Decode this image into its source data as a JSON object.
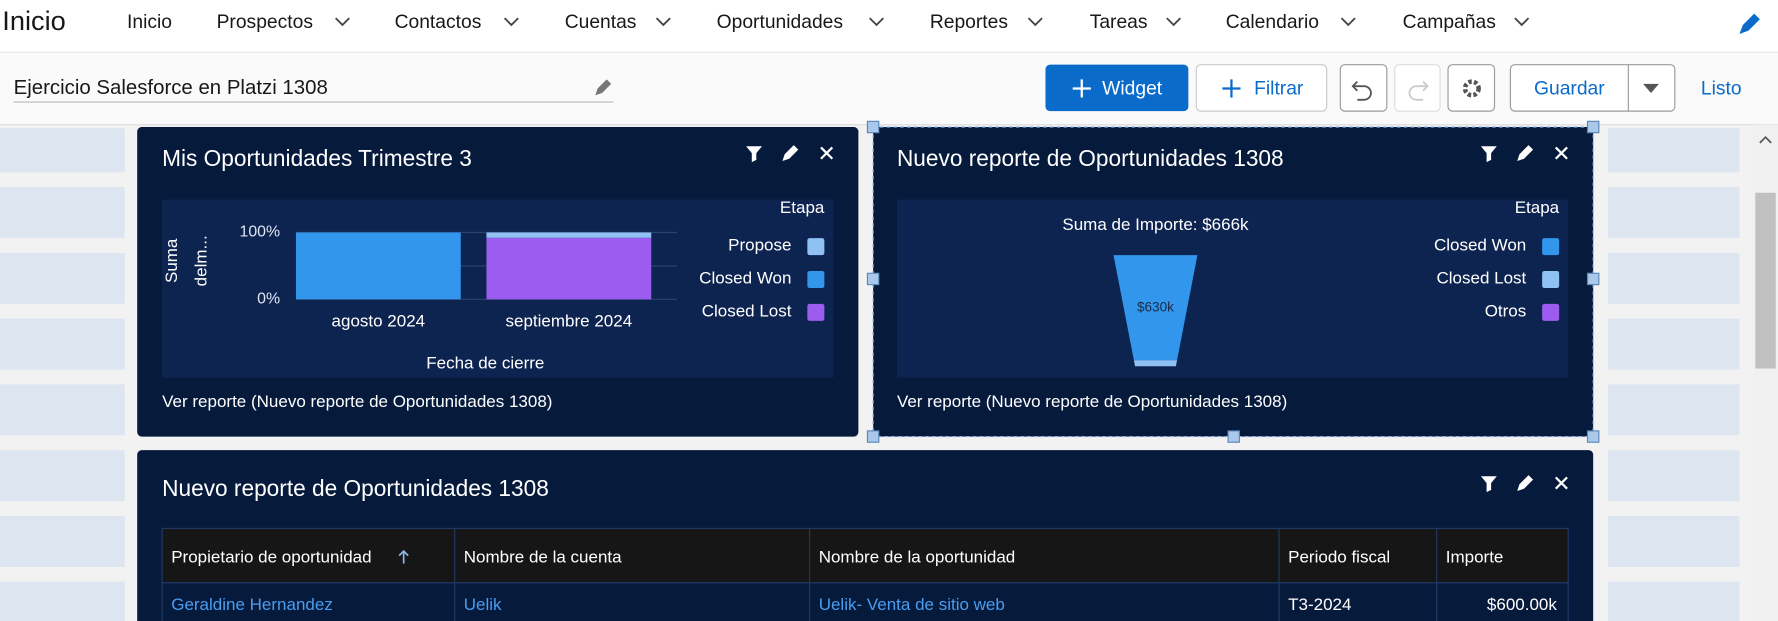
{
  "nav": {
    "app_name": "Inicio",
    "items": [
      "Inicio",
      "Prospectos",
      "Contactos",
      "Cuentas",
      "Oportunidades",
      "Reportes",
      "Tareas",
      "Calendario",
      "Campañas"
    ]
  },
  "toolbar": {
    "dashboard_name": "Ejercicio Salesforce en Platzi 1308",
    "buttons": [
      "Widget",
      "Filtrar",
      "Guardar",
      "Listo"
    ]
  },
  "widgets": [
    {
      "title": "Mis Oportunidades Trimestre 3",
      "footer": "Ver reporte (Nuevo reporte de Oportunidades 1308)",
      "chart": {
        "type": "bar",
        "stacked": true,
        "y_label": [
          "Suma",
          "delm..."
        ],
        "x_label": "Fecha de cierre",
        "legend_title": "Etapa",
        "categories": [
          "agosto 2024",
          "septiembre 2024"
        ],
        "series": [
          {
            "name": "Propose",
            "color": "#8fc1f3",
            "values": [
              0,
              8
            ]
          },
          {
            "name": "Closed Won",
            "color": "#3296ed",
            "values": [
              100,
              0
            ]
          },
          {
            "name": "Closed Lost",
            "color": "#9d5cf0",
            "values": [
              0,
              92
            ]
          }
        ],
        "ylim": [
          0,
          100
        ],
        "yticks": [
          {
            "value": 100,
            "label": "100%"
          },
          {
            "value": 0,
            "label": "0%"
          }
        ]
      }
    },
    {
      "title": "Nuevo reporte de Oportunidades 1308",
      "footer": "Ver reporte (Nuevo reporte de Oportunidades 1308)",
      "chart": {
        "type": "funnel",
        "subtitle": "Suma de Importe: $666k",
        "legend_title": "Etapa",
        "categories": [
          "Closed Won",
          "Closed Lost",
          "Otros"
        ],
        "values": [
          630,
          36,
          0
        ],
        "colors": [
          "#3296ed",
          "#8fc1f3",
          "#9d5cf0"
        ],
        "value_labels": [
          "$630k",
          null,
          null
        ]
      }
    }
  ],
  "table_widget": {
    "title": "Nuevo reporte de Oportunidades 1308",
    "columns": [
      "Propietario de oportunidad",
      "Nombre de la cuenta",
      "Nombre de la oportunidad",
      "Periodo fiscal",
      "Importe"
    ],
    "rows": [
      [
        "Geraldine Hernandez",
        "Uelik",
        "Uelik- Venta de sitio web",
        "T3-2024",
        "$600.00k"
      ]
    ]
  }
}
